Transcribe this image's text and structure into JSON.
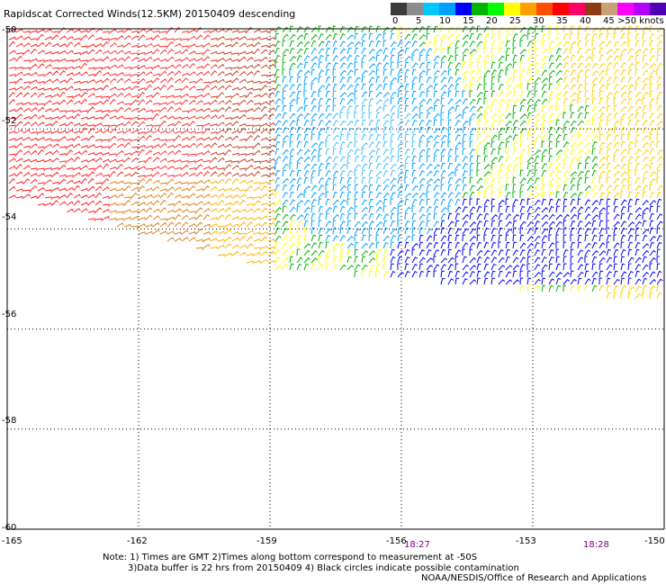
{
  "title": "Rapidscat Corrected Winds(12.5KM) 20150409 descending",
  "legend": {
    "colors": [
      "#3c3c3c",
      "#8c8c8c",
      "#00c8ff",
      "#00a0ff",
      "#0000ff",
      "#00b400",
      "#00ff00",
      "#ffff00",
      "#ffa000",
      "#ff5000",
      "#ff0000",
      "#ff0064",
      "#8c3c14",
      "#c8a078",
      "#ff00ff",
      "#b400ff",
      "#5000b4"
    ],
    "labels": [
      "0",
      "5",
      "10",
      "15",
      "20",
      "25",
      "30",
      "35",
      "40",
      "45"
    ],
    "unit_label": ">50 knots"
  },
  "axes": {
    "lat_labels": [
      "-50",
      "-52",
      "-54",
      "-56",
      "-58",
      "-60"
    ],
    "lon_labels": [
      "-165",
      "-162",
      "-159",
      "-156",
      "-153",
      "-150"
    ]
  },
  "times": [
    "18:27",
    "18:28"
  ],
  "notes": {
    "line1": "Note: 1) Times are GMT 2)Times along bottom correspond to measurement at -50S",
    "line2": "3)Data buffer is 22 hrs from 20150409 4) Black circles indicate possible contamination",
    "credit": "NOAA/NESDIS/Office of Research and Applications"
  }
}
